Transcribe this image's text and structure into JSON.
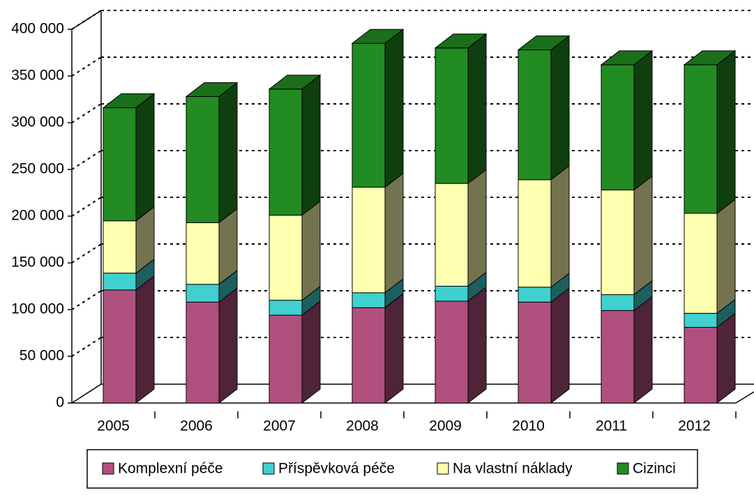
{
  "chart_data": {
    "type": "bar3d_stacked",
    "categories": [
      "2005",
      "2006",
      "2007",
      "2008",
      "2009",
      "2010",
      "2011",
      "2012"
    ],
    "series": [
      {
        "name": "Komplexní péče",
        "color": "#b0507f",
        "values": [
          121000,
          108000,
          94000,
          102000,
          109000,
          108000,
          99000,
          81000
        ]
      },
      {
        "name": "Příspěvková péče",
        "color": "#40d0d0",
        "values": [
          18000,
          19000,
          16000,
          16000,
          16000,
          16000,
          17000,
          15000
        ]
      },
      {
        "name": "Na vlastní náklady",
        "color": "#ffffb0",
        "values": [
          56000,
          66000,
          91000,
          113000,
          110000,
          115000,
          112000,
          107000
        ]
      },
      {
        "name": "Cizinci",
        "color": "#228b22",
        "values": [
          121000,
          135000,
          135000,
          154000,
          145000,
          139000,
          134000,
          159000
        ]
      }
    ],
    "ylim": [
      0,
      400000
    ],
    "yticks": [
      0,
      {
        "value": 50000,
        "label": "50 000"
      },
      {
        "value": 100000,
        "label": "100 000"
      },
      {
        "value": 150000,
        "label": "150 000"
      },
      {
        "value": 200000,
        "label": "200 000"
      },
      {
        "value": 250000,
        "label": "250 000"
      },
      {
        "value": 300000,
        "label": "300 000"
      },
      {
        "value": 350000,
        "label": "350 000"
      },
      {
        "value": 400000,
        "label": "400 000"
      }
    ],
    "grid": true,
    "legend": "bottom"
  }
}
